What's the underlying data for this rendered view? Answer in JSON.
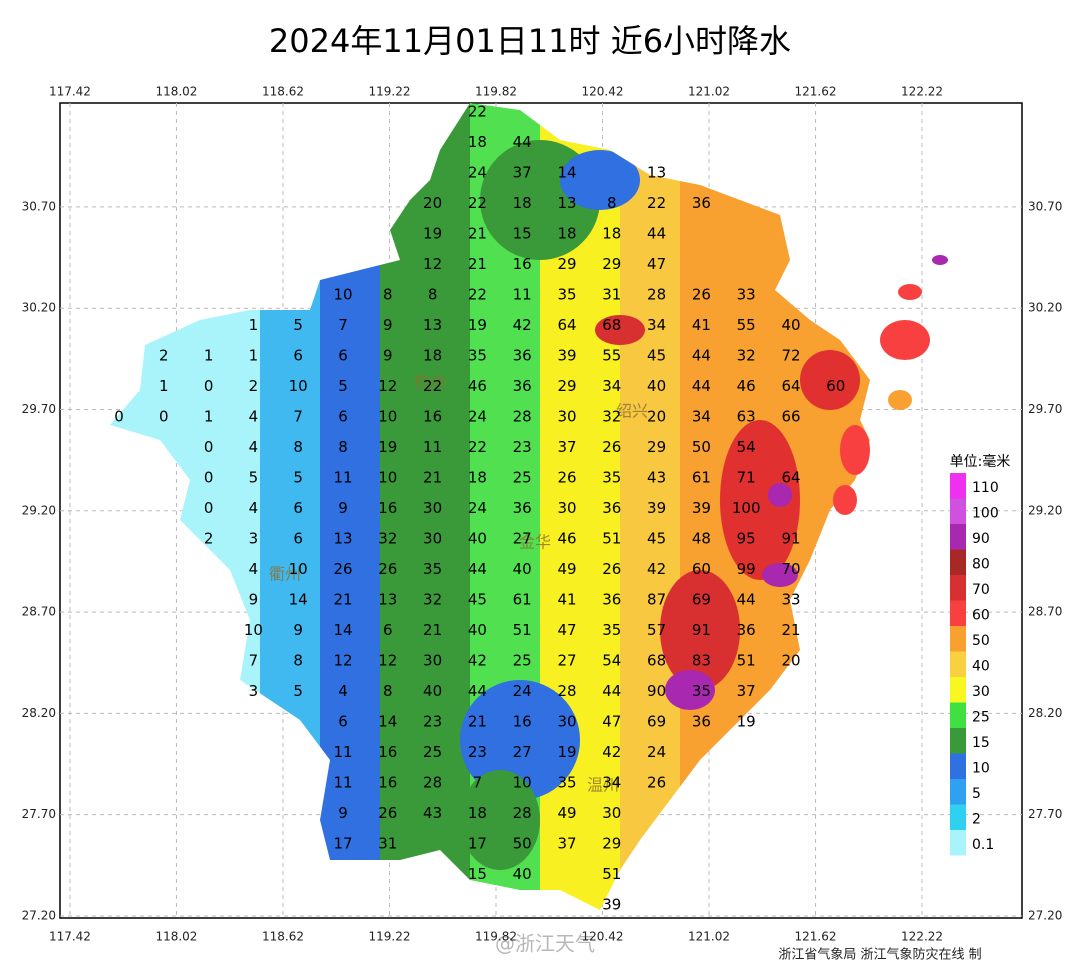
{
  "header": {
    "title": "2024年11月01日11时  近6小时降水"
  },
  "axes": {
    "xlim": [
      117.364,
      122.783
    ],
    "ylim": [
      27.19,
      31.213
    ],
    "xticks": [
      117.42,
      118.02,
      118.62,
      119.22,
      119.82,
      120.42,
      121.02,
      121.62,
      122.22
    ],
    "yticks": [
      {
        "value": 30.7,
        "label": "30.70"
      },
      {
        "value": 30.2,
        "label": "30.20"
      },
      {
        "value": 29.7,
        "label": "29.70"
      },
      {
        "value": 29.2,
        "label": "29.20"
      },
      {
        "value": 28.7,
        "label": "28.70"
      },
      {
        "value": 28.2,
        "label": "28.20"
      },
      {
        "value": 27.7,
        "label": "27.70"
      },
      {
        "value": 27.2,
        "label": "27.20"
      }
    ],
    "grid": true
  },
  "cities": [
    "杭州",
    "绍兴",
    "金华",
    "衢州",
    "温州"
  ],
  "stations": {
    "rows": [
      [
        null,
        null,
        null,
        null,
        null,
        null,
        null,
        null,
        22
      ],
      [
        null,
        null,
        null,
        null,
        null,
        null,
        null,
        null,
        18,
        44
      ],
      [
        null,
        null,
        null,
        null,
        null,
        null,
        null,
        null,
        24,
        37,
        14,
        null,
        13
      ],
      [
        null,
        null,
        null,
        null,
        null,
        null,
        null,
        20,
        22,
        18,
        13,
        8,
        22,
        36
      ],
      [
        null,
        null,
        null,
        null,
        null,
        null,
        null,
        19,
        21,
        15,
        18,
        18,
        44
      ],
      [
        null,
        null,
        null,
        null,
        null,
        null,
        null,
        12,
        21,
        16,
        29,
        29,
        47
      ],
      [
        null,
        null,
        null,
        null,
        null,
        10,
        8,
        8,
        22,
        11,
        35,
        31,
        28,
        26,
        33
      ],
      [
        null,
        null,
        null,
        1,
        5,
        7,
        9,
        13,
        19,
        42,
        64,
        68,
        34,
        41,
        55,
        40
      ],
      [
        null,
        2,
        1,
        1,
        6,
        6,
        9,
        18,
        35,
        36,
        39,
        55,
        45,
        44,
        32,
        72
      ],
      [
        null,
        1,
        0,
        2,
        10,
        5,
        12,
        22,
        46,
        36,
        29,
        34,
        40,
        44,
        46,
        64,
        60
      ],
      [
        0,
        0,
        1,
        4,
        7,
        6,
        10,
        16,
        24,
        28,
        30,
        32,
        20,
        34,
        63,
        66
      ],
      [
        null,
        null,
        0,
        4,
        8,
        8,
        19,
        11,
        22,
        23,
        37,
        26,
        29,
        50,
        54
      ],
      [
        null,
        null,
        0,
        5,
        5,
        11,
        10,
        21,
        18,
        25,
        26,
        35,
        43,
        61,
        71,
        64
      ],
      [
        null,
        null,
        0,
        4,
        6,
        9,
        16,
        30,
        24,
        36,
        30,
        36,
        39,
        39,
        100
      ],
      [
        null,
        null,
        2,
        3,
        6,
        13,
        32,
        30,
        40,
        27,
        46,
        51,
        45,
        48,
        95,
        91
      ],
      [
        null,
        null,
        null,
        4,
        10,
        26,
        26,
        35,
        44,
        40,
        49,
        26,
        42,
        60,
        99,
        70
      ],
      [
        null,
        null,
        null,
        9,
        14,
        21,
        13,
        32,
        45,
        61,
        41,
        36,
        87,
        69,
        44,
        33
      ],
      [
        null,
        null,
        null,
        10,
        9,
        14,
        6,
        21,
        40,
        51,
        47,
        35,
        57,
        91,
        36,
        21
      ],
      [
        null,
        null,
        null,
        7,
        8,
        12,
        12,
        30,
        42,
        25,
        27,
        54,
        68,
        83,
        51,
        20
      ],
      [
        null,
        null,
        null,
        3,
        5,
        4,
        8,
        40,
        44,
        24,
        28,
        44,
        90,
        35,
        37
      ],
      [
        null,
        null,
        null,
        null,
        null,
        6,
        14,
        23,
        21,
        16,
        30,
        47,
        69,
        36,
        19
      ],
      [
        null,
        null,
        null,
        null,
        null,
        11,
        16,
        25,
        23,
        27,
        19,
        42,
        24
      ],
      [
        null,
        null,
        null,
        null,
        null,
        11,
        16,
        28,
        7,
        10,
        35,
        34,
        26
      ],
      [
        null,
        null,
        null,
        null,
        null,
        9,
        26,
        43,
        18,
        28,
        49,
        30
      ],
      [
        null,
        null,
        null,
        null,
        null,
        17,
        31,
        null,
        17,
        50,
        37,
        29
      ],
      [
        null,
        null,
        null,
        null,
        null,
        null,
        null,
        null,
        15,
        40,
        null,
        51
      ],
      [
        null,
        null,
        null,
        null,
        null,
        null,
        null,
        null,
        null,
        null,
        null,
        39
      ]
    ]
  },
  "legend": {
    "title": "单位:毫米",
    "items": [
      {
        "label": "110",
        "color": "#f030f0"
      },
      {
        "label": "100",
        "color": "#d050e0"
      },
      {
        "label": "90",
        "color": "#a828b0"
      },
      {
        "label": "80",
        "color": "#a82828"
      },
      {
        "label": "70",
        "color": "#d83030"
      },
      {
        "label": "60",
        "color": "#f84040"
      },
      {
        "label": "50",
        "color": "#f8a030"
      },
      {
        "label": "40",
        "color": "#f8d040"
      },
      {
        "label": "30",
        "color": "#f8f820"
      },
      {
        "label": "25",
        "color": "#40e040"
      },
      {
        "label": "15",
        "color": "#3a9a3a"
      },
      {
        "label": "10",
        "color": "#3070e0"
      },
      {
        "label": "5",
        "color": "#30a0f0"
      },
      {
        "label": "2",
        "color": "#30d0f0"
      },
      {
        "label": "0.1",
        "color": "#a8f4fa"
      }
    ]
  },
  "footer": {
    "credit": "浙江省气象局  浙江气象防灾在线 制",
    "watermark": "@浙江天气"
  }
}
